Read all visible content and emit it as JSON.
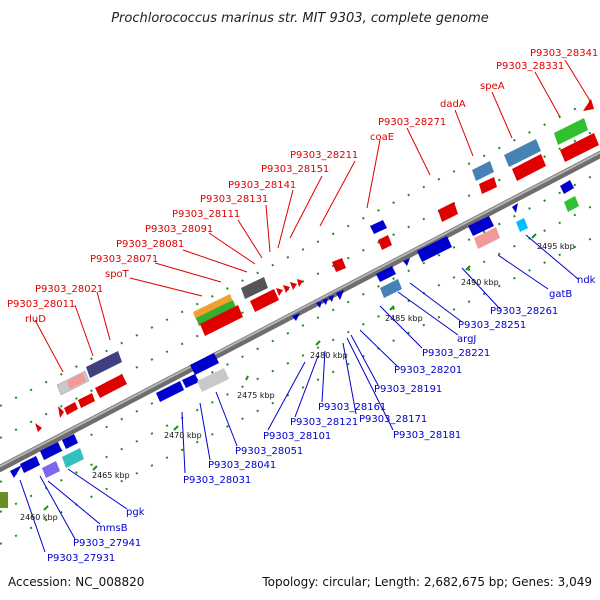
{
  "title": "Prochlorococcus marinus str. MIT 9303, complete genome",
  "footer": {
    "accession": "Accession: NC_008820",
    "summary": "Topology: circular; Length: 2,682,675 bp; Genes: 3,049"
  },
  "colors": {
    "backbone": "#8a8a8a",
    "forward_label": "#e00000",
    "reverse_label": "#0000cc",
    "tick": "#1a8f1a"
  },
  "ruler_labels": [
    {
      "text": "2460 kbp",
      "pos": 2460
    },
    {
      "text": "2465 kbp",
      "pos": 2465
    },
    {
      "text": "2470 kbp",
      "pos": 2470
    },
    {
      "text": "2475 kbp",
      "pos": 2475
    },
    {
      "text": "2480 kbp",
      "pos": 2480
    },
    {
      "text": "2485 kbp",
      "pos": 2485
    },
    {
      "text": "2490 kbp",
      "pos": 2490
    },
    {
      "text": "2495 kbp",
      "pos": 2495
    }
  ],
  "top_labels": [
    "rluD",
    "P9303_28011",
    "P9303_28021",
    "spoT",
    "P9303_28071",
    "P9303_28081",
    "P9303_28091",
    "P9303_28111",
    "P9303_28131",
    "P9303_28141",
    "P9303_28151",
    "P9303_28211",
    "coaE",
    "P9303_28271",
    "dadA",
    "speA",
    "P9303_28331",
    "P9303_28341"
  ],
  "bottom_labels": [
    "P9303_27931",
    "P9303_27941",
    "mmsB",
    "pgk",
    "P9303_28031",
    "P9303_28041",
    "P9303_28051",
    "P9303_28101",
    "P9303_28121",
    "P9303_28161",
    "P9303_28171",
    "P9303_28181",
    "P9303_28191",
    "P9303_28201",
    "P9303_28221",
    "argJ",
    "P9303_28251",
    "P9303_28261",
    "gatB",
    "ndk"
  ]
}
